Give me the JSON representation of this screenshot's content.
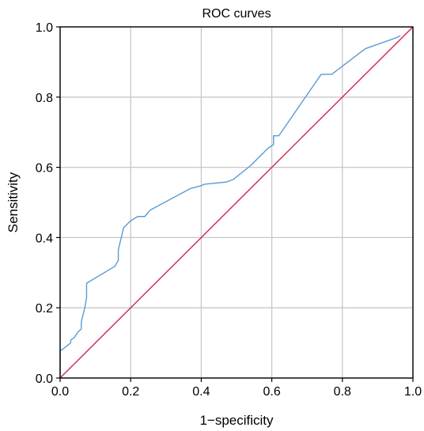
{
  "chart_data": {
    "type": "line",
    "title": "ROC curves",
    "xlabel": "1−specificity",
    "ylabel": "Sensitivity",
    "xlim": [
      0.0,
      1.0
    ],
    "ylim": [
      0.0,
      1.0
    ],
    "xticks": [
      "0.0",
      "0.2",
      "0.4",
      "0.6",
      "0.8",
      "1.0"
    ],
    "yticks": [
      "0.0",
      "0.2",
      "0.4",
      "0.6",
      "0.8",
      "1.0"
    ],
    "grid": true,
    "legend": "none",
    "series": [
      {
        "color": "#5b9bd5",
        "points": [
          [
            0.0,
            0.0
          ],
          [
            0.0,
            0.08
          ],
          [
            0.005,
            0.08
          ],
          [
            0.03,
            0.1
          ],
          [
            0.03,
            0.108
          ],
          [
            0.04,
            0.115
          ],
          [
            0.05,
            0.13
          ],
          [
            0.06,
            0.14
          ],
          [
            0.06,
            0.16
          ],
          [
            0.07,
            0.2
          ],
          [
            0.075,
            0.23
          ],
          [
            0.075,
            0.27
          ],
          [
            0.155,
            0.318
          ],
          [
            0.165,
            0.335
          ],
          [
            0.165,
            0.365
          ],
          [
            0.18,
            0.428
          ],
          [
            0.2,
            0.448
          ],
          [
            0.22,
            0.46
          ],
          [
            0.24,
            0.46
          ],
          [
            0.255,
            0.478
          ],
          [
            0.37,
            0.54
          ],
          [
            0.39,
            0.545
          ],
          [
            0.4,
            0.548
          ],
          [
            0.41,
            0.552
          ],
          [
            0.44,
            0.555
          ],
          [
            0.47,
            0.558
          ],
          [
            0.49,
            0.565
          ],
          [
            0.54,
            0.605
          ],
          [
            0.59,
            0.655
          ],
          [
            0.605,
            0.665
          ],
          [
            0.605,
            0.69
          ],
          [
            0.62,
            0.69
          ],
          [
            0.74,
            0.865
          ],
          [
            0.77,
            0.865
          ],
          [
            0.865,
            0.938
          ],
          [
            0.95,
            0.968
          ],
          [
            0.965,
            0.975
          ]
        ]
      },
      {
        "color": "#d62f54",
        "points": [
          [
            0.0,
            0.0
          ],
          [
            1.0,
            1.0
          ]
        ]
      }
    ]
  }
}
